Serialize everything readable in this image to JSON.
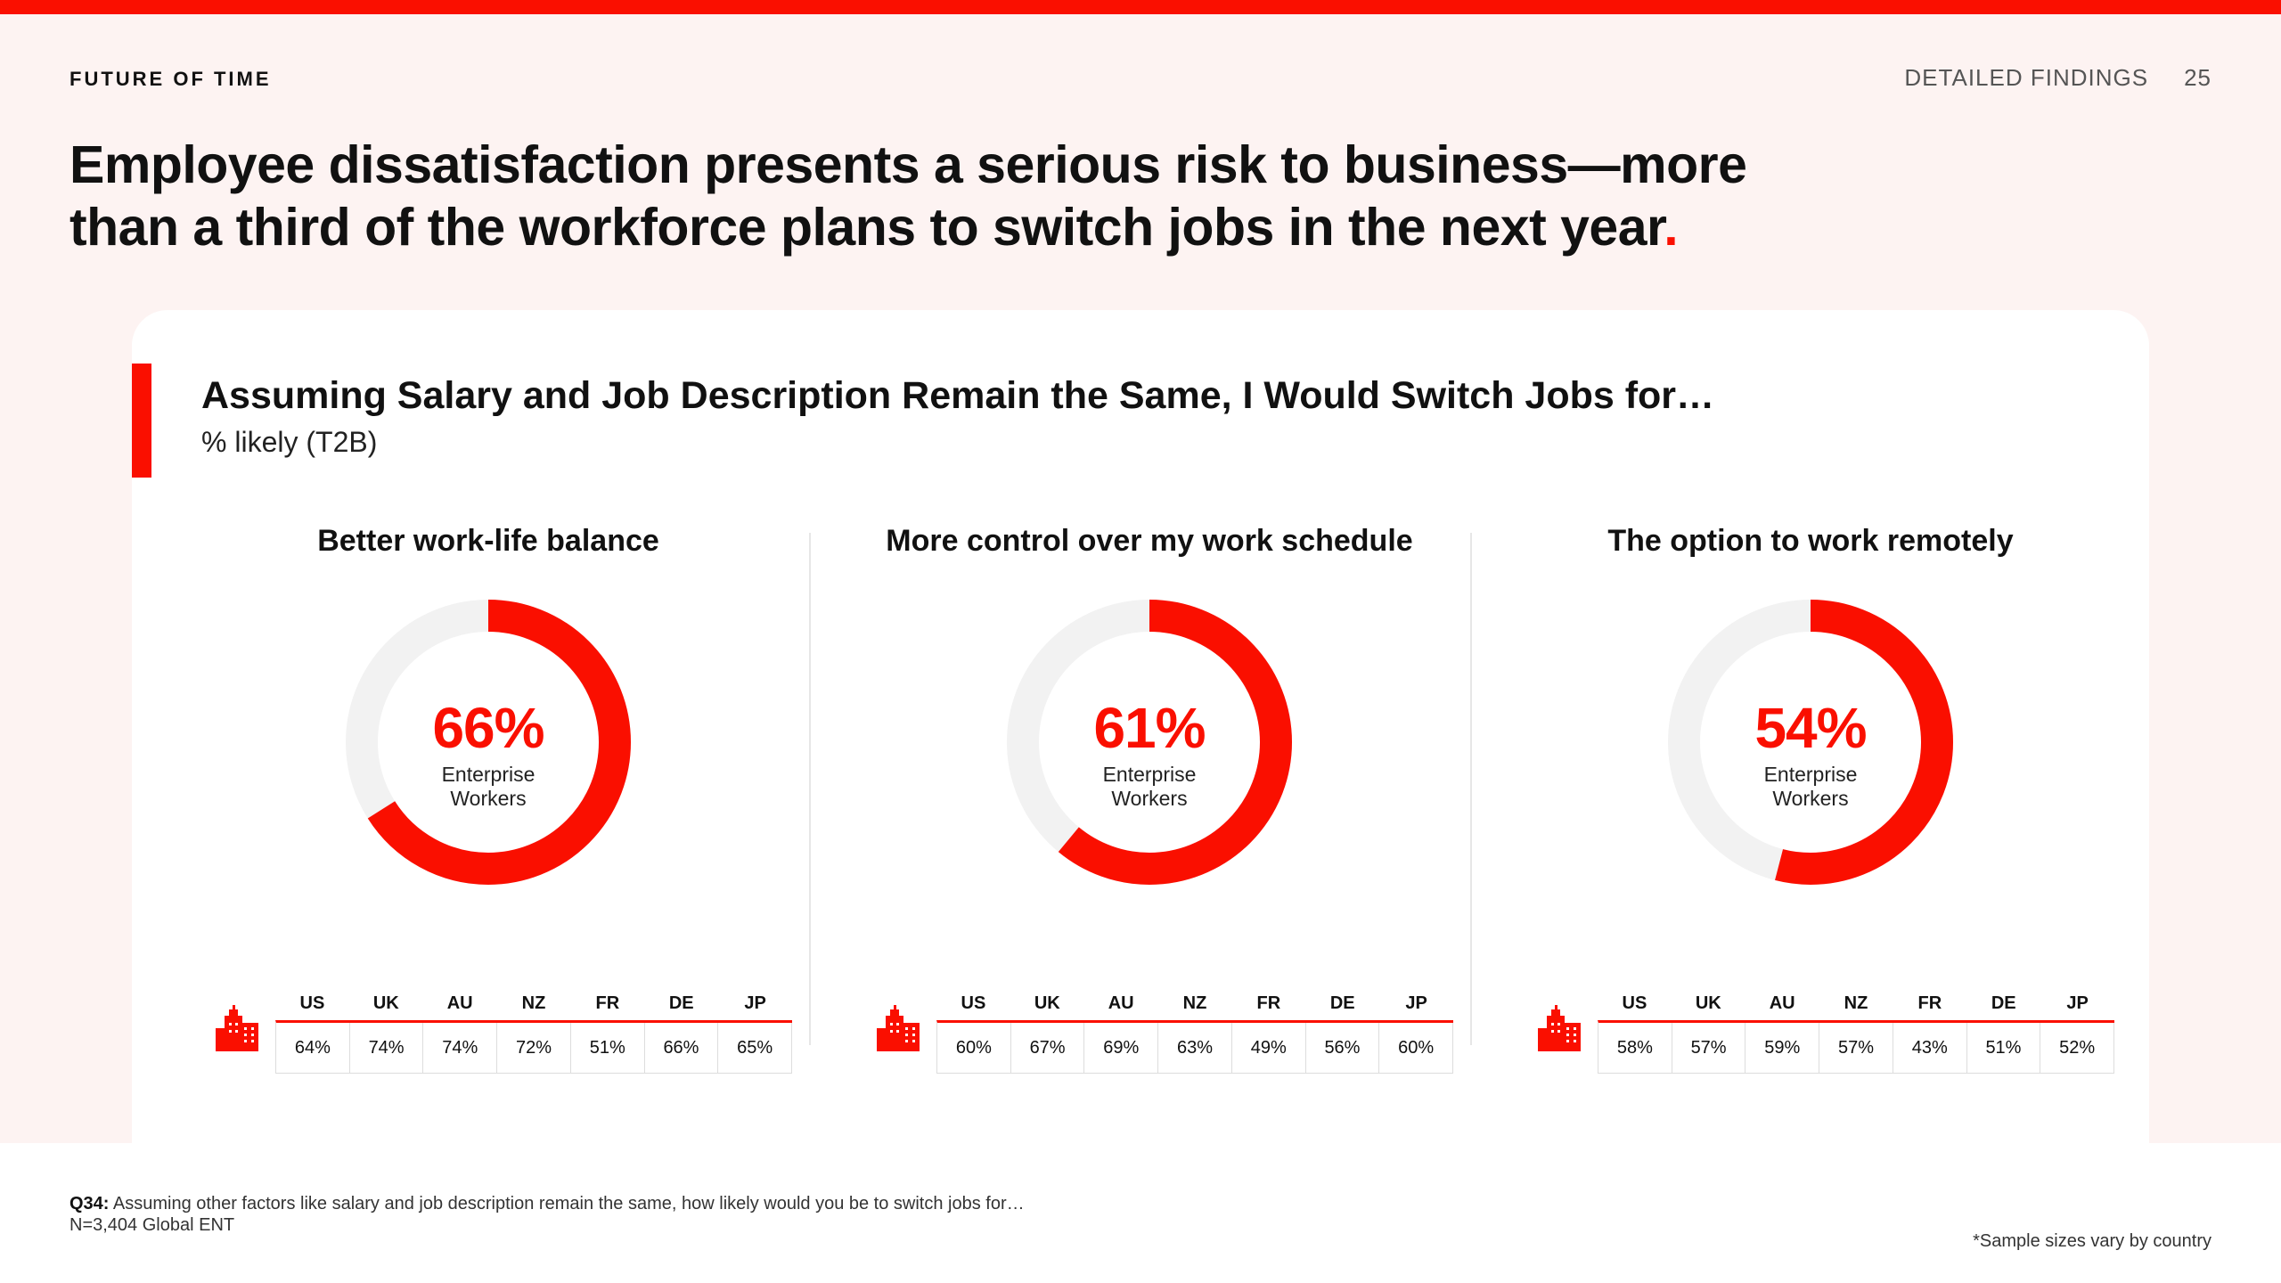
{
  "header": {
    "brand": "FUTURE OF TIME",
    "section": "DETAILED FINDINGS",
    "page": "25"
  },
  "headline": {
    "line1": "Employee dissatisfaction presents a serious risk to business—more",
    "line2": "than a third of the workforce plans to switch jobs in the next year",
    "period": "."
  },
  "card": {
    "title": "Assuming Salary and Job Description Remain the Same, I Would Switch Jobs for…",
    "subtitle": "% likely (T2B)"
  },
  "colors": {
    "accent": "#fa0f00",
    "track": "#f2f2f2"
  },
  "chart_data": [
    {
      "type": "donut",
      "title": "Better work-life balance",
      "value": 66,
      "label": "66%",
      "caption1": "Enterprise",
      "caption2": "Workers",
      "icon": "office-building-icon",
      "table": {
        "countries": [
          "US",
          "UK",
          "AU",
          "NZ",
          "FR",
          "DE",
          "JP"
        ],
        "values": [
          "64%",
          "74%",
          "74%",
          "72%",
          "51%",
          "66%",
          "65%"
        ]
      }
    },
    {
      "type": "donut",
      "title": "More control over my work schedule",
      "value": 61,
      "label": "61%",
      "caption1": "Enterprise",
      "caption2": "Workers",
      "icon": "office-building-icon",
      "table": {
        "countries": [
          "US",
          "UK",
          "AU",
          "NZ",
          "FR",
          "DE",
          "JP"
        ],
        "values": [
          "60%",
          "67%",
          "69%",
          "63%",
          "49%",
          "56%",
          "60%"
        ]
      }
    },
    {
      "type": "donut",
      "title": "The option to work remotely",
      "value": 54,
      "label": "54%",
      "caption1": "Enterprise",
      "caption2": "Workers",
      "icon": "office-building-icon",
      "table": {
        "countries": [
          "US",
          "UK",
          "AU",
          "NZ",
          "FR",
          "DE",
          "JP"
        ],
        "values": [
          "58%",
          "57%",
          "59%",
          "57%",
          "43%",
          "51%",
          "52%"
        ]
      }
    }
  ],
  "footer": {
    "q_label": "Q34:",
    "q_text": "Assuming other factors like salary and job description remain the same, how likely would you be to switch jobs for…",
    "n": "N=3,404 Global ENT",
    "note": "*Sample sizes vary by country"
  }
}
